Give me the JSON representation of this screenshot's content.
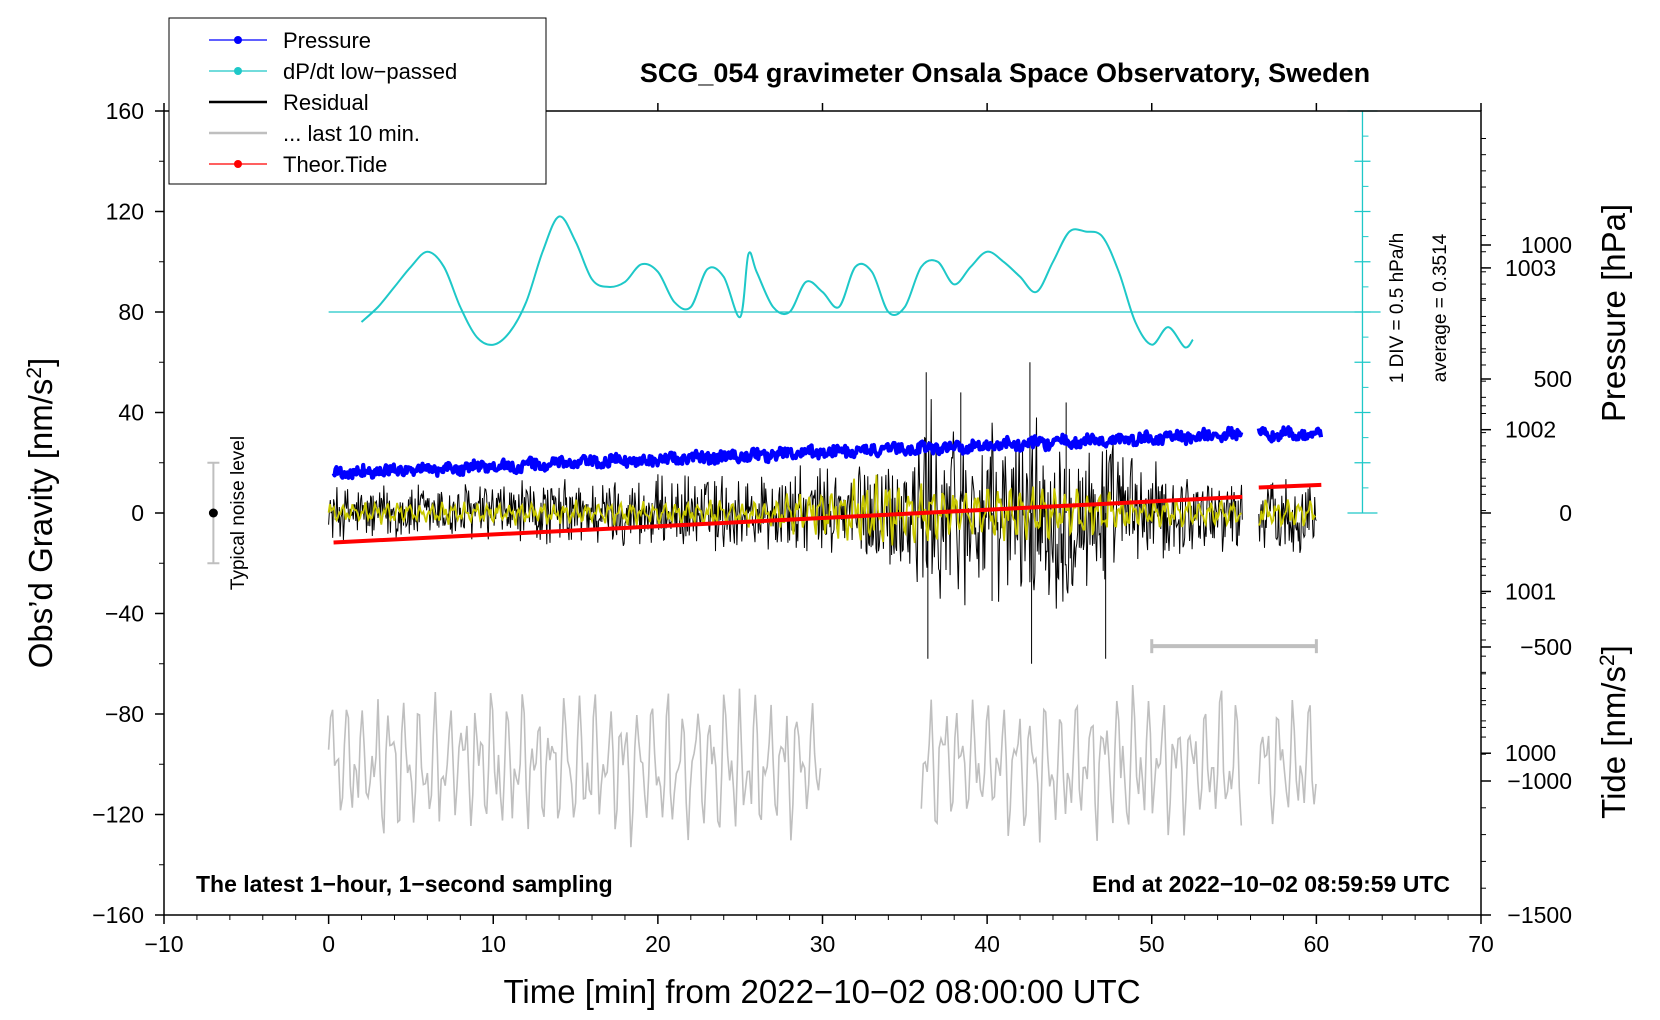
{
  "chart_data": {
    "type": "line",
    "title": "SCG_054 gravimeter Onsala Space Observatory, Sweden",
    "xlabel": "Time [min] from 2022−10−02 08:00:00 UTC",
    "ylabel_left_main": "Obs’d Gravity [nm/s",
    "ylabel_left_sup": "2",
    "ylabel_left_end": "]",
    "ylabel_right_pressure": "Pressure [hPa]",
    "ylabel_right_tide_main": "Tide [nm/s",
    "ylabel_right_tide_sup": "2",
    "ylabel_right_tide_end": "]",
    "xlim": [
      -10,
      70
    ],
    "ylim": [
      -160,
      160
    ],
    "x_ticks": [
      "−10",
      "0",
      "10",
      "20",
      "30",
      "40",
      "50",
      "60",
      "70"
    ],
    "y_ticks": [
      "−160",
      "−120",
      "−80",
      "−40",
      "0",
      "40",
      "80",
      "120",
      "160"
    ],
    "pressure_axis": {
      "ticks": [
        "1000",
        "1001",
        "1002",
        "1003"
      ],
      "range_hpa": [
        999.0,
        1003.97
      ]
    },
    "tide_axis": {
      "ticks": [
        "−1500",
        "−1000",
        "−500",
        "0",
        "500",
        "1000"
      ],
      "range": [
        -1500,
        1500
      ]
    },
    "legend": [
      {
        "label": "Pressure",
        "color": "#0000ff",
        "marker": true
      },
      {
        "label": "dP/dt low−passed",
        "color": "#1ec8c8",
        "marker": true
      },
      {
        "label": "Residual",
        "color": "#000000",
        "marker": false
      },
      {
        "label": "... last 10 min.",
        "color": "#bfbfbf",
        "marker": false
      },
      {
        "label": "Theor.Tide",
        "color": "#ff0000",
        "marker": true
      }
    ],
    "dpdt_scale": {
      "label_div": "1 DIV = 0.5 hPa/h",
      "label_avg": "average = 0.3514",
      "baseline_gravity": 80,
      "divisions": 8
    },
    "noise_level": {
      "label": "Typical noise level",
      "x": -7,
      "center": 0,
      "half_range": 20
    },
    "time_bar": {
      "x": [
        50,
        60
      ],
      "y": -53
    },
    "footer_left": "The latest 1−hour, 1−second sampling",
    "footer_right": "End at 2022−10−02 08:59:59 UTC",
    "series": [
      {
        "name": "Pressure",
        "unit": "hPa",
        "color": "#0000ff",
        "segments": [
          {
            "x": [
              0.3,
              55.5
            ],
            "y": [
              1001.73,
              1001.97
            ]
          },
          {
            "x": [
              56.5,
              60.3
            ],
            "y": [
              1001.97,
              1001.97
            ]
          }
        ]
      },
      {
        "name": "dP/dt low-passed",
        "unit": "gravity-axis units",
        "color": "#1ec8c8",
        "x": [
          2,
          3,
          4,
          5,
          6,
          7,
          8,
          9,
          10,
          11,
          12,
          13,
          14,
          15,
          16,
          17,
          18,
          19,
          20,
          21,
          22,
          23,
          24,
          25,
          25.5,
          26,
          27,
          28,
          29,
          30,
          31,
          32,
          33,
          34,
          35,
          36,
          37,
          38,
          39,
          40,
          41,
          42,
          43,
          44,
          45,
          46,
          47,
          48,
          49,
          50,
          51,
          52,
          52.5
        ],
        "y": [
          76,
          82,
          90,
          98,
          104,
          98,
          82,
          70,
          67,
          72,
          84,
          104,
          118,
          108,
          93,
          90,
          92,
          99,
          96,
          84,
          82,
          97,
          94,
          78,
          103,
          96,
          82,
          80,
          92,
          88,
          82,
          98,
          96,
          80,
          82,
          98,
          100,
          91,
          98,
          104,
          100,
          94,
          88,
          100,
          112,
          112,
          110,
          96,
          76,
          67,
          74,
          66,
          69
        ]
      },
      {
        "name": "Residual",
        "unit": "nm/s²",
        "color": "#000000",
        "segments": [
          {
            "x": [
              0,
              55.5
            ]
          },
          {
            "x": [
              56.5,
              60
            ]
          }
        ],
        "amplitude_by_minute": [
          [
            0,
            12
          ],
          [
            10,
            14
          ],
          [
            20,
            16
          ],
          [
            30,
            20
          ],
          [
            35,
            28
          ],
          [
            36,
            48
          ],
          [
            40,
            36
          ],
          [
            44,
            42
          ],
          [
            47,
            34
          ],
          [
            50,
            22
          ],
          [
            55,
            15
          ],
          [
            60,
            18
          ]
        ]
      },
      {
        "name": "Residual smoothed",
        "unit": "nm/s²",
        "color": "#c8c800",
        "amplitude_by_minute": [
          [
            0,
            3
          ],
          [
            25,
            4
          ],
          [
            31,
            8
          ],
          [
            33,
            12
          ],
          [
            38,
            8
          ],
          [
            45,
            9
          ],
          [
            50,
            5
          ],
          [
            55,
            4
          ],
          [
            60,
            5
          ]
        ]
      },
      {
        "name": "... last 10 min.",
        "unit": "nm/s²",
        "color": "#bfbfbf",
        "segments": [
          {
            "x": [
              0,
              30
            ]
          },
          {
            "x": [
              36,
              55.5
            ]
          },
          {
            "x": [
              56.5,
              60
            ]
          }
        ],
        "level": -100,
        "amplitude": 15
      },
      {
        "name": "Theor.Tide",
        "unit": "nm/s²",
        "color": "#ff0000",
        "segments": [
          {
            "x": [
              0.3,
              55.5
            ],
            "y": [
              -110,
              60
            ]
          },
          {
            "x": [
              56.5,
              60.3
            ],
            "y": [
              95,
              105
            ]
          }
        ]
      }
    ]
  }
}
